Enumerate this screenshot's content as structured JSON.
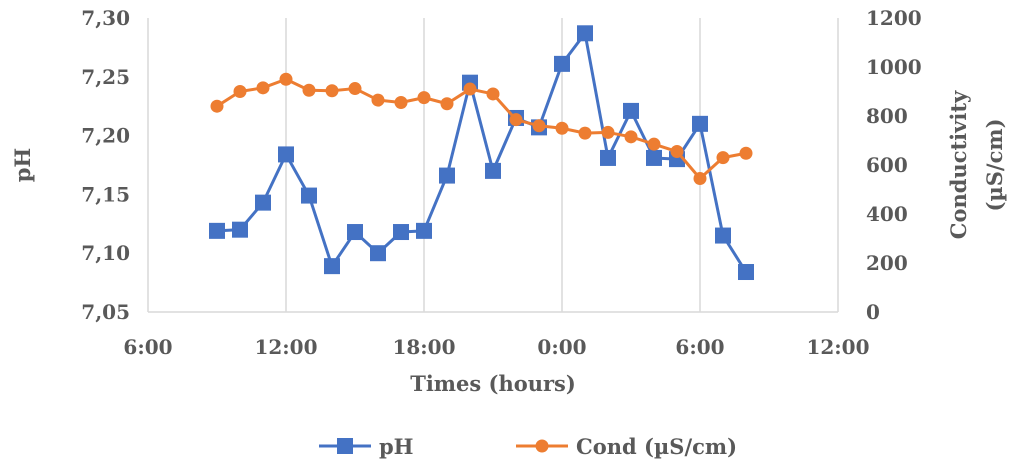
{
  "chart_data": {
    "type": "line",
    "xlabel": "Times (hours)",
    "ylabel": "pH",
    "y2label_line1": "Conductivity",
    "y2label_line2": "(µS/cm)",
    "x_ticks": [
      "6:00",
      "12:00",
      "18:00",
      "0:00",
      "6:00",
      "12:00"
    ],
    "xlim_hours": [
      6,
      36
    ],
    "ylim": [
      7.05,
      7.3
    ],
    "y_ticks": [
      "7,05",
      "7,10",
      "7,15",
      "7,20",
      "7,25",
      "7,30"
    ],
    "y2lim": [
      0,
      1200
    ],
    "y2_ticks": [
      "0",
      "200",
      "400",
      "600",
      "800",
      "1000",
      "1200"
    ],
    "grid": "vertical",
    "legend_position": "bottom",
    "colors": {
      "ph": "#4472C4",
      "cond": "#ED7D31",
      "grid": "#D9D9D9",
      "text": "#595959"
    },
    "x_hours": [
      9,
      10,
      11,
      12,
      13,
      14,
      15,
      16,
      17,
      18,
      19,
      20,
      21,
      22,
      23,
      24,
      25,
      26,
      27,
      28,
      29,
      30,
      31,
      32
    ],
    "series": [
      {
        "name": "pH",
        "axis": "left",
        "marker": "square",
        "values": [
          7.119,
          7.12,
          7.143,
          7.184,
          7.149,
          7.089,
          7.118,
          7.1,
          7.118,
          7.119,
          7.166,
          7.245,
          7.17,
          7.215,
          7.207,
          7.261,
          7.287,
          7.181,
          7.221,
          7.181,
          7.18,
          7.21,
          7.115,
          7.084
        ]
      },
      {
        "name": "Cond (µS/cm)",
        "axis": "right",
        "marker": "circle",
        "values": [
          840,
          900,
          915,
          950,
          905,
          903,
          912,
          865,
          855,
          875,
          850,
          910,
          890,
          785,
          760,
          750,
          730,
          733,
          715,
          685,
          655,
          545,
          630,
          648
        ]
      }
    ]
  }
}
